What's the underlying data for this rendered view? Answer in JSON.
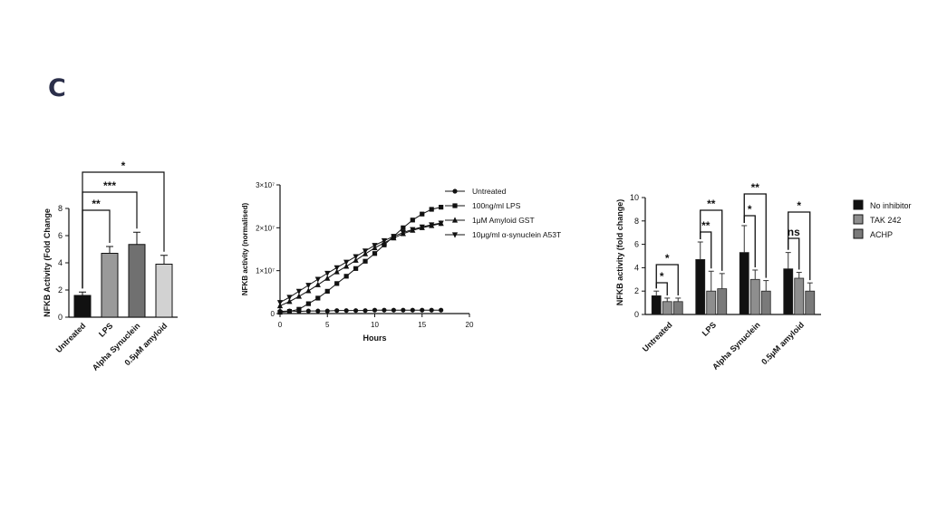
{
  "panel_letter": "C",
  "chart_data": [
    {
      "type": "bar",
      "title": "",
      "xlabel": "",
      "ylabel": "NFKB Activity (Fold Change",
      "ylim": [
        0,
        8
      ],
      "yticks": [
        "0",
        "2",
        "4",
        "6",
        "8"
      ],
      "categories": [
        "Untreated",
        "LPS",
        "Alpha Synuclein",
        "0.5μM amyloid"
      ],
      "values": [
        1.6,
        4.7,
        5.35,
        3.9
      ],
      "errors": [
        0.25,
        0.5,
        0.9,
        0.65
      ],
      "bar_colors": [
        "#111111",
        "#9a9a9a",
        "#707070",
        "#d2d2d2"
      ],
      "significance": [
        {
          "from": "Untreated",
          "to": "LPS",
          "label": "**"
        },
        {
          "from": "Untreated",
          "to": "Alpha Synuclein",
          "label": "***"
        },
        {
          "from": "Untreated",
          "to": "0.5μM amyloid",
          "label": "*"
        }
      ]
    },
    {
      "type": "line",
      "xlabel": "Hours",
      "ylabel": "NFKB activity (normalised)",
      "xlim": [
        0,
        20
      ],
      "ylim": [
        0,
        30000000
      ],
      "xticks": [
        "0",
        "5",
        "10",
        "15",
        "20"
      ],
      "yticks": [
        "0",
        "1×10⁷",
        "2×10⁷",
        "3×10⁷"
      ],
      "legend_position": "right",
      "series": [
        {
          "name": "Untreated",
          "marker": "circle",
          "x": [
            0,
            1,
            2,
            3,
            4,
            5,
            6,
            7,
            8,
            9,
            10,
            11,
            12,
            13,
            14,
            15,
            16,
            17
          ],
          "y": [
            500000,
            600000,
            500000,
            600000,
            600000,
            600000,
            700000,
            700000,
            700000,
            700000,
            800000,
            800000,
            800000,
            800000,
            800000,
            800000,
            800000,
            800000
          ]
        },
        {
          "name": "100ng/ml LPS",
          "marker": "square",
          "x": [
            0,
            1,
            2,
            3,
            4,
            5,
            6,
            7,
            8,
            9,
            10,
            11,
            12,
            13,
            14,
            15,
            16,
            17
          ],
          "y": [
            300000,
            500000,
            1000000,
            2300000,
            3600000,
            5200000,
            7000000,
            8700000,
            10500000,
            12200000,
            14000000,
            16000000,
            18000000,
            20000000,
            21800000,
            23200000,
            24300000,
            24800000
          ]
        },
        {
          "name": "1μM Amyloid GST",
          "marker": "triangle-up",
          "x": [
            0,
            1,
            2,
            3,
            4,
            5,
            6,
            7,
            8,
            9,
            10,
            11,
            12,
            13,
            14,
            15,
            16,
            17
          ],
          "y": [
            1800000,
            2800000,
            4000000,
            5300000,
            6700000,
            8200000,
            9700000,
            11000000,
            12400000,
            13900000,
            15300000,
            16500000,
            17600000,
            18600000,
            19400000,
            20000000,
            20500000,
            21000000
          ]
        },
        {
          "name": "10μg/ml α-synuclein A53T",
          "marker": "triangle-down",
          "x": [
            0,
            1,
            2,
            3,
            4,
            5,
            6,
            7,
            8,
            9,
            10,
            11,
            12,
            13,
            14,
            15,
            16,
            17
          ],
          "y": [
            2600000,
            3800000,
            5200000,
            6600000,
            8000000,
            9400000,
            10700000,
            12000000,
            13300000,
            14600000,
            15900000,
            17000000,
            18000000,
            18900000,
            19600000,
            20200000,
            20700000,
            21100000
          ]
        }
      ]
    },
    {
      "type": "bar",
      "xlabel": "",
      "ylabel": "NFKB activity (fold change)",
      "ylim": [
        0,
        10
      ],
      "yticks": [
        "0",
        "2",
        "4",
        "6",
        "8",
        "10"
      ],
      "categories": [
        "Untreated",
        "LPS",
        "Alpha Synuclein",
        "0.5μM amyloid"
      ],
      "legend_position": "right",
      "series": [
        {
          "name": "No inhibitor",
          "color": "#111111",
          "values": [
            1.6,
            4.7,
            5.3,
            3.9
          ],
          "errors": [
            0.4,
            1.5,
            2.3,
            1.4
          ]
        },
        {
          "name": "TAK 242",
          "color": "#8e8e8e",
          "values": [
            1.1,
            2.0,
            3.0,
            3.1
          ],
          "errors": [
            0.3,
            1.7,
            0.8,
            0.5
          ]
        },
        {
          "name": "ACHP",
          "color": "#7a7a7a",
          "values": [
            1.1,
            2.2,
            2.0,
            2.0
          ],
          "errors": [
            0.3,
            1.3,
            0.9,
            0.7
          ]
        }
      ],
      "significance": [
        {
          "group": "Untreated",
          "from": "No inhibitor",
          "to": "TAK 242",
          "label": "*"
        },
        {
          "group": "Untreated",
          "from": "No inhibitor",
          "to": "ACHP",
          "label": "*"
        },
        {
          "group": "LPS",
          "from": "No inhibitor",
          "to": "TAK 242",
          "label": "**"
        },
        {
          "group": "LPS",
          "from": "No inhibitor",
          "to": "ACHP",
          "label": "**"
        },
        {
          "group": "Alpha Synuclein",
          "from": "No inhibitor",
          "to": "TAK 242",
          "label": "*"
        },
        {
          "group": "Alpha Synuclein",
          "from": "No inhibitor",
          "to": "ACHP",
          "label": "**"
        },
        {
          "group": "0.5μM amyloid",
          "from": "No inhibitor",
          "to": "TAK 242",
          "label": "ns"
        },
        {
          "group": "0.5μM amyloid",
          "from": "No inhibitor",
          "to": "ACHP",
          "label": "*"
        }
      ]
    }
  ]
}
